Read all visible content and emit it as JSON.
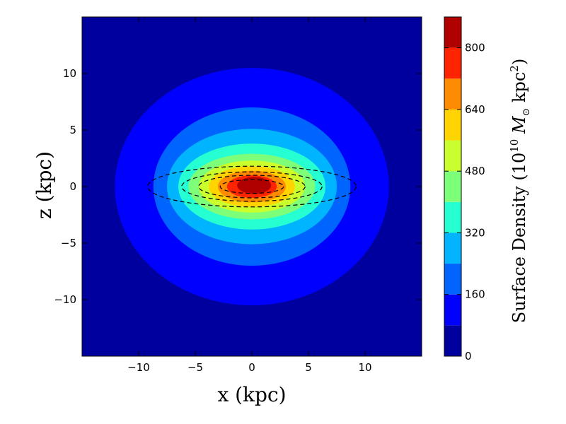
{
  "chart_data": {
    "type": "contour",
    "xlabel": "x (kpc)",
    "ylabel": "z (kpc)",
    "xlim": [
      -15,
      15
    ],
    "ylim": [
      -15,
      15
    ],
    "x_ticks": [
      -10,
      -5,
      0,
      5,
      10
    ],
    "y_ticks": [
      -10,
      -5,
      0,
      5,
      10
    ],
    "x_tick_labels": [
      "−10",
      "−5",
      "0",
      "5",
      "10"
    ],
    "y_tick_labels": [
      "−10",
      "−5",
      "0",
      "5",
      "10"
    ],
    "filled_contours": {
      "levels": [
        0,
        80,
        160,
        240,
        320,
        400,
        480,
        560,
        640,
        720,
        800,
        880
      ],
      "colors": [
        "#00009f",
        "#0000ff",
        "#0064ff",
        "#00b4ff",
        "#26ffd1",
        "#7dff7a",
        "#caff2d",
        "#ffd400",
        "#ff8c00",
        "#ff2400",
        "#b00000"
      ],
      "regions": [
        {
          "level": 80,
          "center": [
            0,
            0
          ],
          "semi_axes": [
            12.1,
            10.5
          ]
        },
        {
          "level": 160,
          "center": [
            0,
            0
          ],
          "semi_axes": [
            8.7,
            7.0
          ]
        },
        {
          "level": 240,
          "center": [
            0,
            0
          ],
          "semi_axes": [
            7.5,
            5.1
          ]
        },
        {
          "level": 320,
          "center": [
            0,
            0
          ],
          "semi_axes": [
            6.5,
            3.8
          ]
        },
        {
          "level": 400,
          "center": [
            0,
            0
          ],
          "semi_axes": [
            5.6,
            2.9
          ]
        },
        {
          "level": 480,
          "center": [
            0,
            0
          ],
          "semi_axes": [
            4.7,
            2.3
          ]
        },
        {
          "level": 560,
          "center": [
            0,
            0
          ],
          "semi_axes": [
            3.8,
            1.8
          ]
        },
        {
          "level": 640,
          "center": [
            0,
            0
          ],
          "semi_axes": [
            3.0,
            1.4
          ]
        },
        {
          "level": 720,
          "center": [
            0,
            0
          ],
          "semi_axes": [
            2.2,
            1.0
          ]
        },
        {
          "level": 800,
          "center": [
            0.2,
            0.1
          ],
          "semi_axes": [
            1.5,
            0.75
          ]
        }
      ]
    },
    "dashed_contours": [
      {
        "center": [
          0,
          0
        ],
        "semi_axes": [
          9.2,
          1.8
        ]
      },
      {
        "center": [
          0,
          0
        ],
        "semi_axes": [
          6.2,
          1.3
        ]
      },
      {
        "center": [
          0,
          0
        ],
        "semi_axes": [
          4.7,
          1.0
        ]
      },
      {
        "center": [
          0,
          0
        ],
        "semi_axes": [
          2.8,
          0.6
        ]
      }
    ],
    "colorbar": {
      "label": "Surface Density (10^10 M_⊙ kpc^2)",
      "label_parts": {
        "prefix": "Surface Density (10",
        "exponent1": "10",
        "symbol": "M",
        "subscript": "⊙",
        "unit": "kpc",
        "exponent2": "2",
        "suffix": ")"
      },
      "range": [
        0,
        880
      ],
      "ticks": [
        0,
        160,
        320,
        480,
        640,
        800
      ],
      "tick_labels": [
        "0",
        "160",
        "320",
        "480",
        "640",
        "800"
      ]
    },
    "colormap": "jet",
    "grid": false,
    "legend": false
  }
}
